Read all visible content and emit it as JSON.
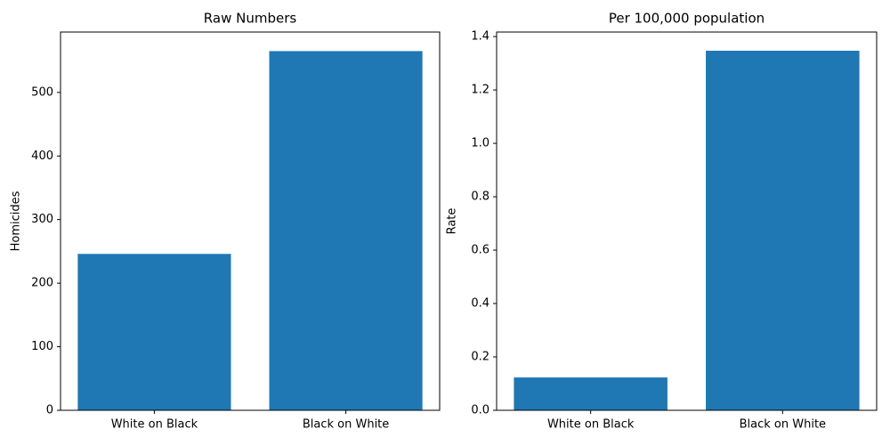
{
  "chart_data": [
    {
      "type": "bar",
      "title": "Raw Numbers",
      "y_label": "Homicides",
      "categories": [
        "White on Black",
        "Black on White"
      ],
      "values": [
        246,
        565
      ],
      "color": "#1f77b4",
      "ylim": [
        0,
        595
      ],
      "yticks": [
        0,
        100,
        200,
        300,
        400,
        500
      ]
    },
    {
      "type": "bar",
      "title": "Per 100,000 population",
      "y_label": "Rate",
      "categories": [
        "White on Black",
        "Black on White"
      ],
      "values": [
        0.123,
        1.347
      ],
      "color": "#1f77b4",
      "ylim": [
        0,
        1.417
      ],
      "yticks": [
        {
          "value": 0,
          "label": "0.0"
        },
        {
          "value": 0.2,
          "label": "0.2"
        },
        {
          "value": 0.4,
          "label": "0.4"
        },
        {
          "value": 0.6,
          "label": "0.6"
        },
        {
          "value": 0.8,
          "label": "0.8"
        },
        {
          "value": 1.0,
          "label": "1.0"
        },
        {
          "value": 1.2,
          "label": "1.2"
        },
        {
          "value": 1.4,
          "label": "1.4"
        }
      ]
    }
  ]
}
